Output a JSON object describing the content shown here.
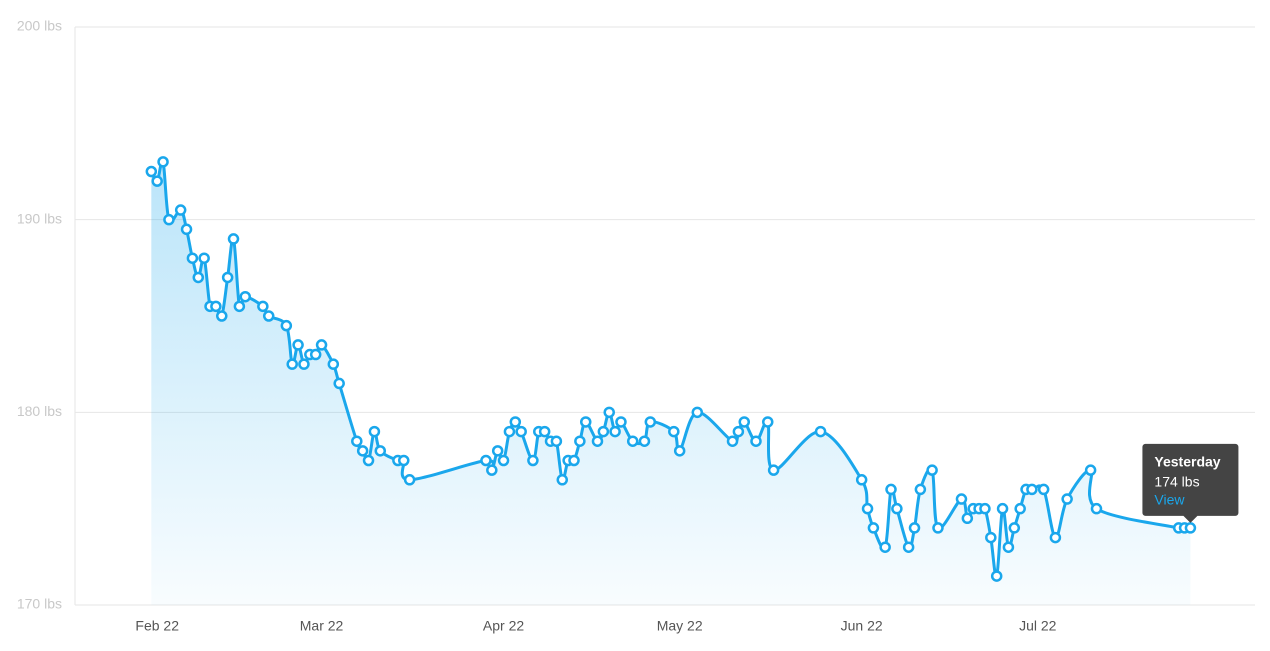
{
  "chart_data": {
    "type": "line",
    "x": [
      -1,
      0,
      1,
      2,
      4,
      5,
      6,
      7,
      8,
      9,
      10,
      11,
      12,
      13,
      14,
      15,
      18,
      19,
      22,
      23,
      24,
      25,
      26,
      27,
      28,
      30,
      31,
      34,
      35,
      36,
      37,
      38,
      41,
      42,
      43,
      56,
      57,
      58,
      59,
      60,
      61,
      62,
      64,
      65,
      66,
      67,
      68,
      69,
      70,
      71,
      72,
      73,
      75,
      76,
      77,
      78,
      79,
      81,
      83,
      84,
      88,
      89,
      92,
      98,
      99,
      100,
      102,
      104,
      105,
      113,
      120,
      121,
      122,
      124,
      125,
      126,
      128,
      129,
      130,
      132,
      133,
      137,
      138,
      139,
      140,
      141,
      142,
      143,
      144,
      145,
      146,
      147,
      148,
      149,
      151,
      153,
      155,
      159,
      160,
      174,
      175,
      176
    ],
    "series": [
      {
        "color": "#1aa7ec",
        "values": [
          192.5,
          192,
          193,
          190,
          190.5,
          189.5,
          188,
          187,
          188,
          185.5,
          185.5,
          185,
          187,
          189,
          185.5,
          186,
          185.5,
          185,
          184.5,
          182.5,
          183.5,
          182.5,
          183,
          183,
          183.5,
          182.5,
          181.5,
          178.5,
          178,
          177.5,
          179,
          178,
          177.5,
          177.5,
          176.5,
          177.5,
          177,
          178,
          177.5,
          179,
          179.5,
          179,
          177.5,
          179,
          179,
          178.5,
          178.5,
          176.5,
          177.5,
          177.5,
          178.5,
          179.5,
          178.5,
          179,
          180,
          179,
          179.5,
          178.5,
          178.5,
          179.5,
          179,
          178,
          180,
          178.5,
          179,
          179.5,
          178.5,
          179.5,
          177,
          179,
          176.5,
          175,
          174,
          173,
          176,
          175,
          173,
          174,
          176,
          177,
          174,
          175.5,
          174.5,
          175,
          175,
          175,
          173.5,
          171.5,
          175,
          173,
          174,
          175,
          176,
          176,
          176,
          173.5,
          175.5,
          177,
          175,
          174,
          174,
          174
        ]
      }
    ],
    "xlim": [
      -14,
      187
    ],
    "xticks": [
      {
        "value": 0,
        "label": "Feb 22"
      },
      {
        "value": 28,
        "label": "Mar 22"
      },
      {
        "value": 59,
        "label": "Apr 22"
      },
      {
        "value": 89,
        "label": "May 22"
      },
      {
        "value": 120,
        "label": "Jun 22"
      },
      {
        "value": 150,
        "label": "Jul 22"
      }
    ],
    "ylim": [
      170,
      200
    ],
    "yticks": [
      {
        "value": 170,
        "label": "170 lbs"
      },
      {
        "value": 180,
        "label": "180 lbs"
      },
      {
        "value": 190,
        "label": "190 lbs"
      },
      {
        "value": 200,
        "label": "200 lbs"
      }
    ],
    "grid": true,
    "tooltip": {
      "title": "Yesterday",
      "value": {
        "value": 174,
        "label": "174 lbs"
      },
      "link": "View"
    }
  }
}
